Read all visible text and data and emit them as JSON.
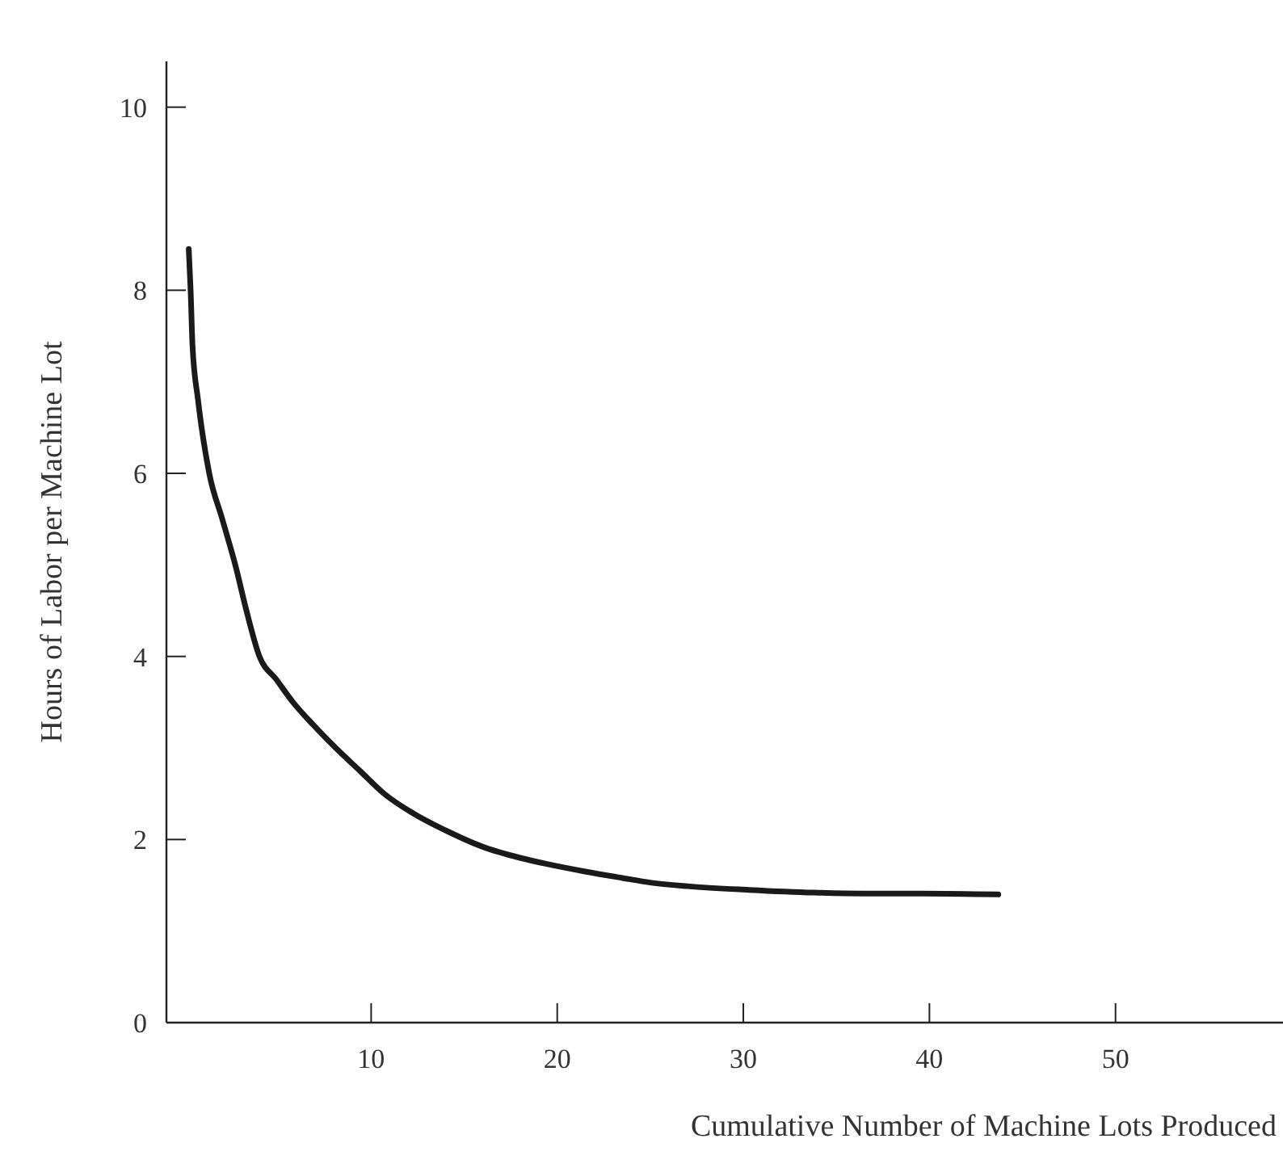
{
  "chart_data": {
    "type": "line",
    "xlabel": "Cumulative Number of Machine Lots Produced",
    "ylabel": "Hours of Labor per Machine Lot",
    "x": [
      0.2,
      0.3,
      0.4,
      0.7,
      1.3,
      2,
      2.7,
      3.3,
      4,
      4.9,
      5.8,
      6.9,
      8.1,
      9.4,
      10.7,
      12.3,
      14,
      16,
      18,
      19.5,
      21.5,
      23.5,
      25,
      27,
      30.3,
      33.8,
      36.5,
      39.7,
      43.7
    ],
    "series": [
      {
        "color": "#1a1a1a",
        "values": [
          8.45,
          8,
          7.4,
          6.8,
          6,
          5.5,
          5,
          4.5,
          4,
          3.75,
          3.5,
          3.25,
          3,
          2.75,
          2.5,
          2.28,
          2.1,
          1.92,
          1.8,
          1.73,
          1.65,
          1.58,
          1.53,
          1.49,
          1.45,
          1.42,
          1.41,
          1.41,
          1.4
        ]
      }
    ],
    "xlim": [
      -1,
      59
    ],
    "ylim": [
      0,
      10.5
    ],
    "xticks": [
      10,
      20,
      30,
      40,
      50
    ],
    "yticks": [
      0,
      2,
      4,
      6,
      8,
      10
    ],
    "grid": false,
    "marker": "none",
    "line_style": "solid"
  }
}
